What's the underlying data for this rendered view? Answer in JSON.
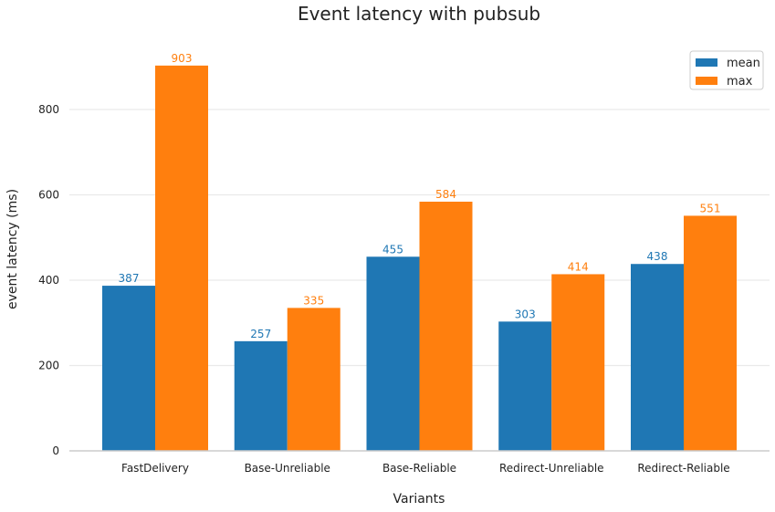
{
  "chart_data": {
    "type": "bar",
    "title": "Event latency with pubsub",
    "xlabel": "Variants",
    "ylabel": "event latency (ms)",
    "categories": [
      "FastDelivery",
      "Base-Unreliable",
      "Base-Reliable",
      "Redirect-Unreliable",
      "Redirect-Reliable"
    ],
    "series": [
      {
        "name": "mean",
        "color": "#1f77b4",
        "values": [
          387,
          257,
          455,
          303,
          438
        ]
      },
      {
        "name": "max",
        "color": "#ff7f0e",
        "values": [
          903,
          335,
          584,
          414,
          551
        ]
      }
    ],
    "ylim": [
      0,
      950
    ],
    "yticks": [
      0,
      200,
      400,
      600,
      800
    ],
    "grid": true,
    "legend_position": "top-right"
  }
}
